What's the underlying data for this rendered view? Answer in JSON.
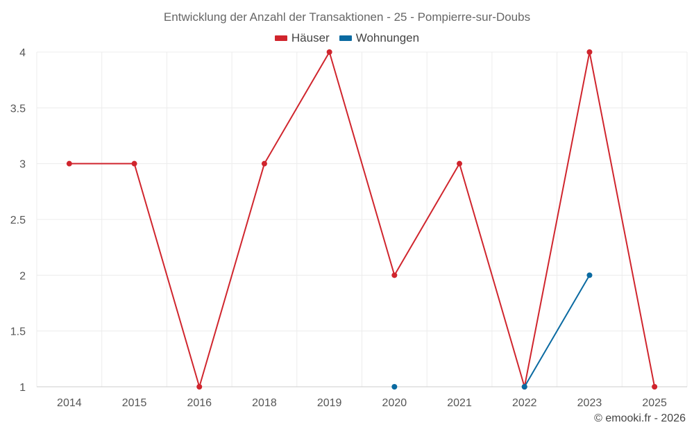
{
  "chart_data": {
    "type": "line",
    "title": "Entwicklung der Anzahl der Transaktionen - 25 - Pompierre-sur-Doubs",
    "categories": [
      "2014",
      "2015",
      "2016",
      "2018",
      "2019",
      "2020",
      "2021",
      "2022",
      "2023",
      "2025"
    ],
    "series": [
      {
        "name": "Häuser",
        "color": "#d0252d",
        "values": [
          3,
          3,
          1,
          3,
          4,
          2,
          3,
          1,
          4,
          1
        ]
      },
      {
        "name": "Wohnungen",
        "color": "#0a6aa1",
        "values": [
          null,
          null,
          null,
          null,
          null,
          1,
          null,
          1,
          2,
          null
        ]
      }
    ],
    "ylim": [
      1,
      4
    ],
    "yticks": [
      "1",
      "1.5",
      "2",
      "2.5",
      "3",
      "3.5",
      "4"
    ],
    "xlabel": "",
    "ylabel": "",
    "grid": true,
    "legend": "top-center"
  },
  "credit": "© emooki.fr - 2026"
}
